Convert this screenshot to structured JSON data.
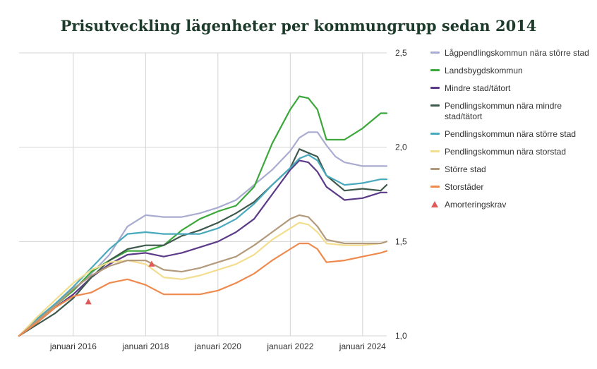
{
  "chart_data": {
    "type": "line",
    "title": "Prisutveckling lägenheter per kommungrupp sedan 2014",
    "x_range": [
      "2014-07",
      "2024-09"
    ],
    "ylim": [
      1.0,
      2.5
    ],
    "y_ticks": [
      "1,0",
      "1,5",
      "2,0",
      "2,5"
    ],
    "y_tick_values": [
      1.0,
      1.5,
      2.0,
      2.5
    ],
    "x_ticks": [
      "januari 2016",
      "januari 2018",
      "januari 2020",
      "januari 2022",
      "januari 2024"
    ],
    "x_tick_values": [
      "2016-01",
      "2018-01",
      "2020-01",
      "2022-01",
      "2024-01"
    ],
    "grid": true,
    "legend_position": "right",
    "series": [
      {
        "name": "Lågpendlingskommun nära större stad",
        "color": "#a9acd0",
        "points": [
          [
            "2014-07",
            1.0
          ],
          [
            "2015-01",
            1.08
          ],
          [
            "2015-07",
            1.17
          ],
          [
            "2016-01",
            1.24
          ],
          [
            "2016-07",
            1.33
          ],
          [
            "2017-01",
            1.43
          ],
          [
            "2017-07",
            1.58
          ],
          [
            "2018-01",
            1.64
          ],
          [
            "2018-07",
            1.63
          ],
          [
            "2019-01",
            1.63
          ],
          [
            "2019-07",
            1.65
          ],
          [
            "2020-01",
            1.68
          ],
          [
            "2020-07",
            1.72
          ],
          [
            "2021-01",
            1.8
          ],
          [
            "2021-07",
            1.88
          ],
          [
            "2022-01",
            1.98
          ],
          [
            "2022-04",
            2.05
          ],
          [
            "2022-07",
            2.08
          ],
          [
            "2022-10",
            2.08
          ],
          [
            "2023-01",
            2.01
          ],
          [
            "2023-04",
            1.95
          ],
          [
            "2023-07",
            1.92
          ],
          [
            "2024-01",
            1.9
          ],
          [
            "2024-07",
            1.9
          ],
          [
            "2024-09",
            1.9
          ]
        ]
      },
      {
        "name": "Landsbygdskommun",
        "color": "#3ca83c",
        "points": [
          [
            "2014-07",
            1.0
          ],
          [
            "2015-01",
            1.07
          ],
          [
            "2015-07",
            1.16
          ],
          [
            "2016-01",
            1.24
          ],
          [
            "2016-07",
            1.34
          ],
          [
            "2017-01",
            1.4
          ],
          [
            "2017-07",
            1.45
          ],
          [
            "2018-01",
            1.45
          ],
          [
            "2018-07",
            1.48
          ],
          [
            "2019-01",
            1.56
          ],
          [
            "2019-07",
            1.62
          ],
          [
            "2020-01",
            1.66
          ],
          [
            "2020-07",
            1.69
          ],
          [
            "2021-01",
            1.79
          ],
          [
            "2021-07",
            2.02
          ],
          [
            "2022-01",
            2.2
          ],
          [
            "2022-04",
            2.27
          ],
          [
            "2022-07",
            2.26
          ],
          [
            "2022-10",
            2.2
          ],
          [
            "2023-01",
            2.04
          ],
          [
            "2023-07",
            2.04
          ],
          [
            "2024-01",
            2.1
          ],
          [
            "2024-07",
            2.18
          ],
          [
            "2024-09",
            2.18
          ]
        ]
      },
      {
        "name": "Mindre stad/tätort",
        "color": "#5b3a87",
        "points": [
          [
            "2014-07",
            1.0
          ],
          [
            "2015-01",
            1.07
          ],
          [
            "2015-07",
            1.15
          ],
          [
            "2016-01",
            1.22
          ],
          [
            "2016-07",
            1.31
          ],
          [
            "2017-01",
            1.38
          ],
          [
            "2017-07",
            1.43
          ],
          [
            "2018-01",
            1.44
          ],
          [
            "2018-07",
            1.42
          ],
          [
            "2019-01",
            1.44
          ],
          [
            "2019-07",
            1.47
          ],
          [
            "2020-01",
            1.5
          ],
          [
            "2020-07",
            1.55
          ],
          [
            "2021-01",
            1.62
          ],
          [
            "2021-07",
            1.75
          ],
          [
            "2022-01",
            1.88
          ],
          [
            "2022-04",
            1.93
          ],
          [
            "2022-07",
            1.92
          ],
          [
            "2022-10",
            1.87
          ],
          [
            "2023-01",
            1.79
          ],
          [
            "2023-07",
            1.72
          ],
          [
            "2024-01",
            1.73
          ],
          [
            "2024-07",
            1.76
          ],
          [
            "2024-09",
            1.76
          ]
        ]
      },
      {
        "name": "Pendlingskommun nära mindre stad/tätort",
        "color": "#3f5a4c",
        "points": [
          [
            "2014-07",
            1.0
          ],
          [
            "2015-01",
            1.06
          ],
          [
            "2015-07",
            1.12
          ],
          [
            "2016-01",
            1.2
          ],
          [
            "2016-07",
            1.31
          ],
          [
            "2017-01",
            1.4
          ],
          [
            "2017-07",
            1.46
          ],
          [
            "2018-01",
            1.48
          ],
          [
            "2018-07",
            1.48
          ],
          [
            "2019-01",
            1.53
          ],
          [
            "2019-07",
            1.56
          ],
          [
            "2020-01",
            1.6
          ],
          [
            "2020-07",
            1.65
          ],
          [
            "2021-01",
            1.71
          ],
          [
            "2021-07",
            1.8
          ],
          [
            "2022-01",
            1.89
          ],
          [
            "2022-04",
            1.99
          ],
          [
            "2022-07",
            1.97
          ],
          [
            "2022-10",
            1.95
          ],
          [
            "2023-01",
            1.85
          ],
          [
            "2023-07",
            1.77
          ],
          [
            "2024-01",
            1.78
          ],
          [
            "2024-07",
            1.77
          ],
          [
            "2024-09",
            1.8
          ]
        ]
      },
      {
        "name": "Pendlingskommun nära större stad",
        "color": "#49a9bd",
        "points": [
          [
            "2014-07",
            1.0
          ],
          [
            "2015-01",
            1.09
          ],
          [
            "2015-07",
            1.17
          ],
          [
            "2016-01",
            1.26
          ],
          [
            "2016-07",
            1.36
          ],
          [
            "2017-01",
            1.46
          ],
          [
            "2017-07",
            1.54
          ],
          [
            "2018-01",
            1.55
          ],
          [
            "2018-07",
            1.54
          ],
          [
            "2019-01",
            1.54
          ],
          [
            "2019-07",
            1.54
          ],
          [
            "2020-01",
            1.57
          ],
          [
            "2020-07",
            1.62
          ],
          [
            "2021-01",
            1.7
          ],
          [
            "2021-07",
            1.8
          ],
          [
            "2022-01",
            1.89
          ],
          [
            "2022-04",
            1.94
          ],
          [
            "2022-07",
            1.96
          ],
          [
            "2022-10",
            1.93
          ],
          [
            "2023-01",
            1.85
          ],
          [
            "2023-07",
            1.8
          ],
          [
            "2024-01",
            1.81
          ],
          [
            "2024-07",
            1.83
          ],
          [
            "2024-09",
            1.83
          ]
        ]
      },
      {
        "name": "Pendlingskommun nära storstad",
        "color": "#f3dd8e",
        "points": [
          [
            "2014-07",
            1.0
          ],
          [
            "2015-01",
            1.1
          ],
          [
            "2015-07",
            1.19
          ],
          [
            "2016-01",
            1.28
          ],
          [
            "2016-07",
            1.35
          ],
          [
            "2017-01",
            1.39
          ],
          [
            "2017-07",
            1.4
          ],
          [
            "2018-01",
            1.38
          ],
          [
            "2018-07",
            1.31
          ],
          [
            "2019-01",
            1.3
          ],
          [
            "2019-07",
            1.32
          ],
          [
            "2020-01",
            1.35
          ],
          [
            "2020-07",
            1.38
          ],
          [
            "2021-01",
            1.43
          ],
          [
            "2021-07",
            1.51
          ],
          [
            "2022-01",
            1.57
          ],
          [
            "2022-04",
            1.6
          ],
          [
            "2022-07",
            1.59
          ],
          [
            "2022-10",
            1.55
          ],
          [
            "2023-01",
            1.49
          ],
          [
            "2023-07",
            1.48
          ],
          [
            "2024-01",
            1.48
          ],
          [
            "2024-07",
            1.49
          ],
          [
            "2024-09",
            1.5
          ]
        ]
      },
      {
        "name": "Större stad",
        "color": "#b49a7c",
        "points": [
          [
            "2014-07",
            1.0
          ],
          [
            "2015-01",
            1.08
          ],
          [
            "2015-07",
            1.16
          ],
          [
            "2016-01",
            1.25
          ],
          [
            "2016-07",
            1.32
          ],
          [
            "2017-01",
            1.37
          ],
          [
            "2017-07",
            1.4
          ],
          [
            "2018-01",
            1.4
          ],
          [
            "2018-07",
            1.35
          ],
          [
            "2019-01",
            1.34
          ],
          [
            "2019-07",
            1.36
          ],
          [
            "2020-01",
            1.39
          ],
          [
            "2020-07",
            1.42
          ],
          [
            "2021-01",
            1.48
          ],
          [
            "2021-07",
            1.55
          ],
          [
            "2022-01",
            1.62
          ],
          [
            "2022-04",
            1.64
          ],
          [
            "2022-07",
            1.63
          ],
          [
            "2022-10",
            1.58
          ],
          [
            "2023-01",
            1.51
          ],
          [
            "2023-07",
            1.49
          ],
          [
            "2024-01",
            1.49
          ],
          [
            "2024-07",
            1.49
          ],
          [
            "2024-09",
            1.5
          ]
        ]
      },
      {
        "name": "Storstäder",
        "color": "#ef8a4e",
        "points": [
          [
            "2014-07",
            1.0
          ],
          [
            "2015-01",
            1.07
          ],
          [
            "2015-07",
            1.15
          ],
          [
            "2016-01",
            1.21
          ],
          [
            "2016-07",
            1.23
          ],
          [
            "2017-01",
            1.28
          ],
          [
            "2017-07",
            1.3
          ],
          [
            "2018-01",
            1.27
          ],
          [
            "2018-07",
            1.22
          ],
          [
            "2019-01",
            1.22
          ],
          [
            "2019-07",
            1.22
          ],
          [
            "2020-01",
            1.24
          ],
          [
            "2020-07",
            1.28
          ],
          [
            "2021-01",
            1.33
          ],
          [
            "2021-07",
            1.4
          ],
          [
            "2022-01",
            1.46
          ],
          [
            "2022-04",
            1.49
          ],
          [
            "2022-07",
            1.49
          ],
          [
            "2022-10",
            1.46
          ],
          [
            "2023-01",
            1.39
          ],
          [
            "2023-07",
            1.4
          ],
          [
            "2024-01",
            1.42
          ],
          [
            "2024-07",
            1.44
          ],
          [
            "2024-09",
            1.45
          ]
        ]
      }
    ],
    "markers": {
      "name": "Amorteringskrav",
      "color": "#e05a5a",
      "points": [
        [
          "2016-06",
          1.18
        ],
        [
          "2018-03",
          1.38
        ]
      ]
    }
  }
}
